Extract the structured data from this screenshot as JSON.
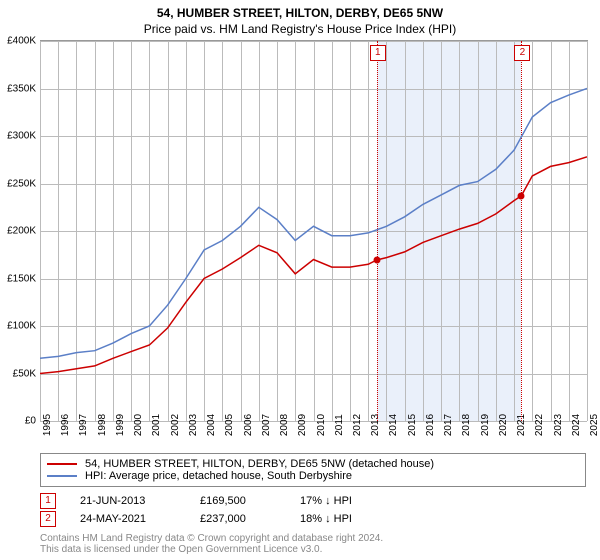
{
  "title": "54, HUMBER STREET, HILTON, DERBY, DE65 5NW",
  "subtitle": "Price paid vs. HM Land Registry's House Price Index (HPI)",
  "chart": {
    "type": "line",
    "background_color": "#ffffff",
    "grid_color": "#bbbbbb",
    "title_fontsize": 12,
    "label_fontsize": 10,
    "y": {
      "min": 0,
      "max": 400000,
      "step": 50000,
      "prefix": "£",
      "ticks": [
        "£0",
        "£50K",
        "£100K",
        "£150K",
        "£200K",
        "£250K",
        "£300K",
        "£350K",
        "£400K"
      ]
    },
    "x": {
      "min": 1995,
      "max": 2025,
      "step": 1,
      "years": [
        1995,
        1996,
        1997,
        1998,
        1999,
        2000,
        2001,
        2002,
        2003,
        2004,
        2005,
        2006,
        2007,
        2008,
        2009,
        2010,
        2011,
        2012,
        2013,
        2014,
        2015,
        2016,
        2017,
        2018,
        2019,
        2020,
        2021,
        2022,
        2023,
        2024,
        2025
      ]
    },
    "shade": {
      "from_year": 2013.47,
      "to_year": 2021.4,
      "color": "#eaf0fa"
    },
    "series": [
      {
        "name": "price_paid",
        "label": "54, HUMBER STREET, HILTON, DERBY, DE65 5NW (detached house)",
        "color": "#cc0000",
        "line_width": 1.5,
        "points": [
          [
            1995,
            50000
          ],
          [
            1996,
            52000
          ],
          [
            1997,
            55000
          ],
          [
            1998,
            58000
          ],
          [
            1999,
            66000
          ],
          [
            2000,
            73000
          ],
          [
            2001,
            80000
          ],
          [
            2002,
            98000
          ],
          [
            2003,
            125000
          ],
          [
            2004,
            150000
          ],
          [
            2005,
            160000
          ],
          [
            2006,
            172000
          ],
          [
            2007,
            185000
          ],
          [
            2008,
            177000
          ],
          [
            2009,
            155000
          ],
          [
            2010,
            170000
          ],
          [
            2011,
            162000
          ],
          [
            2012,
            162000
          ],
          [
            2013,
            165000
          ],
          [
            2013.47,
            169500
          ],
          [
            2014,
            172000
          ],
          [
            2015,
            178000
          ],
          [
            2016,
            188000
          ],
          [
            2017,
            195000
          ],
          [
            2018,
            202000
          ],
          [
            2019,
            208000
          ],
          [
            2020,
            218000
          ],
          [
            2021,
            232000
          ],
          [
            2021.4,
            237000
          ],
          [
            2022,
            258000
          ],
          [
            2023,
            268000
          ],
          [
            2024,
            272000
          ],
          [
            2025,
            278000
          ]
        ]
      },
      {
        "name": "hpi",
        "label": "HPI: Average price, detached house, South Derbyshire",
        "color": "#5b7fc7",
        "line_width": 1.5,
        "points": [
          [
            1995,
            66000
          ],
          [
            1996,
            68000
          ],
          [
            1997,
            72000
          ],
          [
            1998,
            74000
          ],
          [
            1999,
            82000
          ],
          [
            2000,
            92000
          ],
          [
            2001,
            100000
          ],
          [
            2002,
            122000
          ],
          [
            2003,
            150000
          ],
          [
            2004,
            180000
          ],
          [
            2005,
            190000
          ],
          [
            2006,
            205000
          ],
          [
            2007,
            225000
          ],
          [
            2008,
            212000
          ],
          [
            2009,
            190000
          ],
          [
            2010,
            205000
          ],
          [
            2011,
            195000
          ],
          [
            2012,
            195000
          ],
          [
            2013,
            198000
          ],
          [
            2014,
            205000
          ],
          [
            2015,
            215000
          ],
          [
            2016,
            228000
          ],
          [
            2017,
            238000
          ],
          [
            2018,
            248000
          ],
          [
            2019,
            252000
          ],
          [
            2020,
            265000
          ],
          [
            2021,
            285000
          ],
          [
            2022,
            320000
          ],
          [
            2023,
            335000
          ],
          [
            2024,
            343000
          ],
          [
            2025,
            350000
          ]
        ]
      }
    ],
    "markers": [
      {
        "n": "1",
        "year": 2013.47,
        "value": 169500
      },
      {
        "n": "2",
        "year": 2021.4,
        "value": 237000
      }
    ]
  },
  "legend": {
    "row1": "54, HUMBER STREET, HILTON, DERBY, DE65 5NW (detached house)",
    "row2": "HPI: Average price, detached house, South Derbyshire"
  },
  "events": [
    {
      "n": "1",
      "date": "21-JUN-2013",
      "price": "£169,500",
      "diff": "17% ↓ HPI"
    },
    {
      "n": "2",
      "date": "24-MAY-2021",
      "price": "£237,000",
      "diff": "18% ↓ HPI"
    }
  ],
  "license": {
    "line1": "Contains HM Land Registry data © Crown copyright and database right 2024.",
    "line2": "This data is licensed under the Open Government Licence v3.0."
  }
}
